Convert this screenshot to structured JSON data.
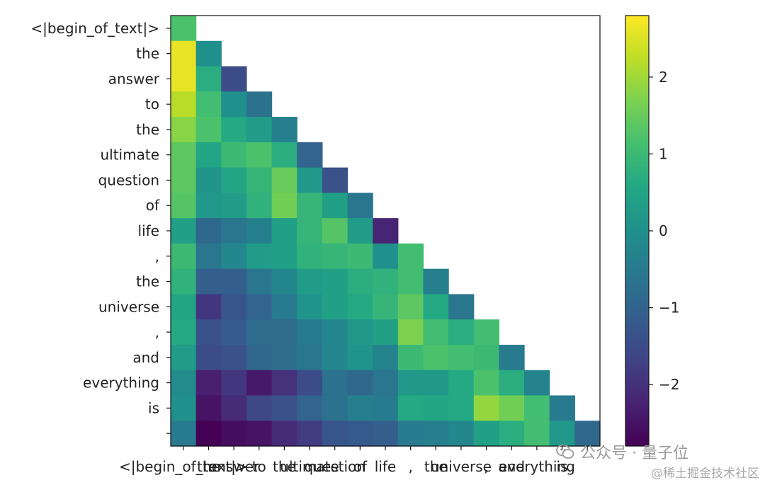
{
  "chart_data": {
    "type": "heatmap",
    "title": "",
    "xlabel": "",
    "ylabel": "",
    "tokens": [
      "<|begin_of_text|>",
      "the",
      "answer",
      "to",
      "the",
      "ultimate",
      "question",
      "of",
      "life",
      ",",
      "the",
      "universe",
      ",",
      "and",
      "everything",
      "is",
      ""
    ],
    "mask": "lower-triangular (upper triangle blank)",
    "colormap": "viridis",
    "colorbar": {
      "min": -2.8,
      "max": 2.8,
      "ticks": [
        2,
        1,
        0,
        -1,
        -2
      ],
      "tick_labels": [
        "2",
        "1",
        "0",
        "−1",
        "−2"
      ]
    },
    "values": [
      [
        1.2
      ],
      [
        2.6,
        0.0
      ],
      [
        2.6,
        0.7,
        -1.5
      ],
      [
        2.2,
        1.1,
        0.0,
        -0.7
      ],
      [
        1.8,
        1.2,
        0.6,
        0.3,
        -0.4
      ],
      [
        1.4,
        0.5,
        1.0,
        1.2,
        0.7,
        -1.0
      ],
      [
        1.4,
        0.1,
        0.5,
        0.9,
        1.5,
        0.2,
        -1.4
      ],
      [
        1.3,
        0.2,
        0.3,
        0.8,
        1.6,
        0.9,
        0.4,
        -0.6
      ],
      [
        0.4,
        -0.9,
        -0.6,
        -0.4,
        0.4,
        0.9,
        1.3,
        0.3,
        -2.2
      ],
      [
        1.0,
        -0.6,
        -0.2,
        0.3,
        0.4,
        0.8,
        0.9,
        1.0,
        0.0,
        1.1
      ],
      [
        0.8,
        -1.1,
        -1.1,
        -0.6,
        -0.2,
        0.3,
        0.4,
        0.7,
        0.8,
        1.1,
        -0.4
      ],
      [
        0.5,
        -1.9,
        -1.3,
        -1.0,
        -0.5,
        0.1,
        0.4,
        0.6,
        0.9,
        1.4,
        0.6,
        -0.6
      ],
      [
        0.6,
        -1.4,
        -1.2,
        -0.8,
        -0.8,
        -0.5,
        -0.2,
        0.2,
        0.4,
        1.7,
        1.1,
        0.7,
        1.1
      ],
      [
        0.3,
        -1.5,
        -1.4,
        -0.9,
        -0.8,
        -0.6,
        -0.2,
        0.1,
        -0.3,
        1.0,
        1.2,
        1.1,
        1.0,
        -0.5
      ],
      [
        -0.1,
        -2.3,
        -1.9,
        -2.4,
        -2.0,
        -1.5,
        -0.7,
        -0.9,
        -0.6,
        0.2,
        0.2,
        0.6,
        1.2,
        0.7,
        -0.3
      ],
      [
        0.0,
        -2.5,
        -2.1,
        -1.6,
        -1.4,
        -1.0,
        -0.7,
        -0.4,
        -0.5,
        0.6,
        0.5,
        0.6,
        1.9,
        1.6,
        1.1,
        -0.5
      ],
      [
        -0.5,
        -2.9,
        -2.6,
        -2.5,
        -2.1,
        -1.8,
        -1.3,
        -1.2,
        -1.1,
        -0.5,
        -0.4,
        -0.2,
        0.4,
        0.7,
        1.1,
        0.2,
        -0.9
      ]
    ]
  },
  "watermarks": {
    "wechat_text": "公众号 · 量子位",
    "site_text": "@稀土掘金技术社区",
    "wechat_icon": "wechat-icon"
  }
}
